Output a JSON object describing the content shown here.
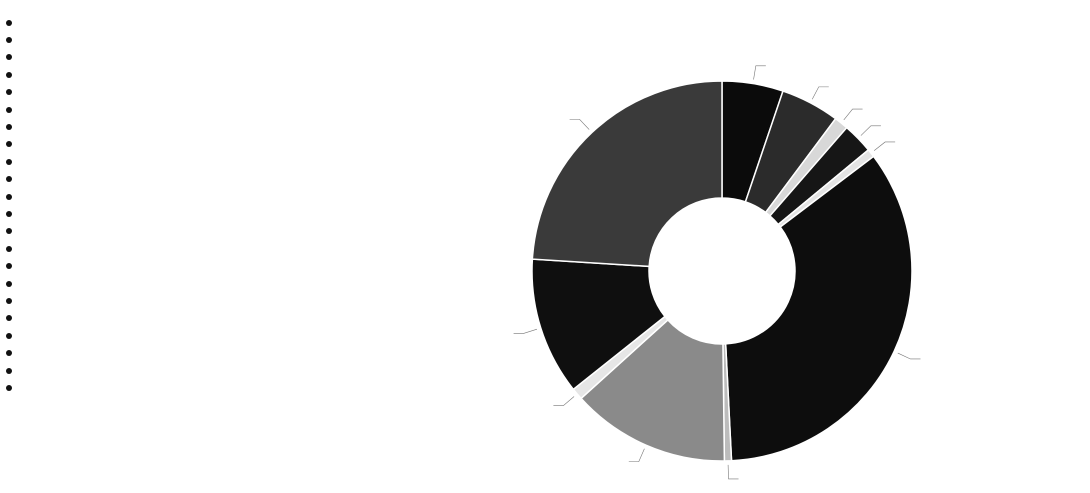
{
  "chart_data": {
    "type": "pie",
    "donut": true,
    "legend_title": "",
    "legend_position": "left",
    "legend": [
      "",
      "",
      "",
      "",
      "",
      "",
      "",
      "",
      "",
      "",
      "",
      "",
      "",
      "",
      "",
      "",
      "",
      "",
      "",
      "",
      "",
      ""
    ],
    "slices": [
      {
        "label": "",
        "value": 5.2,
        "color": "#0b0b0b"
      },
      {
        "label": "",
        "value": 5.0,
        "color": "#2b2b2b"
      },
      {
        "label": "",
        "value": 1.2,
        "color": "#d8d8d8"
      },
      {
        "label": "",
        "value": 2.6,
        "color": "#161616"
      },
      {
        "label": "",
        "value": 0.7,
        "color": "#e4e4e4"
      },
      {
        "label": "",
        "value": 34.5,
        "color": "#0d0d0d"
      },
      {
        "label": "",
        "value": 0.6,
        "color": "#bcbcbc"
      },
      {
        "label": "",
        "value": 13.5,
        "color": "#8a8a8a"
      },
      {
        "label": "",
        "value": 1.0,
        "color": "#e6e6e6"
      },
      {
        "label": "",
        "value": 11.7,
        "color": "#0f0f0f"
      },
      {
        "label": "",
        "value": 24.0,
        "color": "#3a3a3a"
      }
    ]
  }
}
